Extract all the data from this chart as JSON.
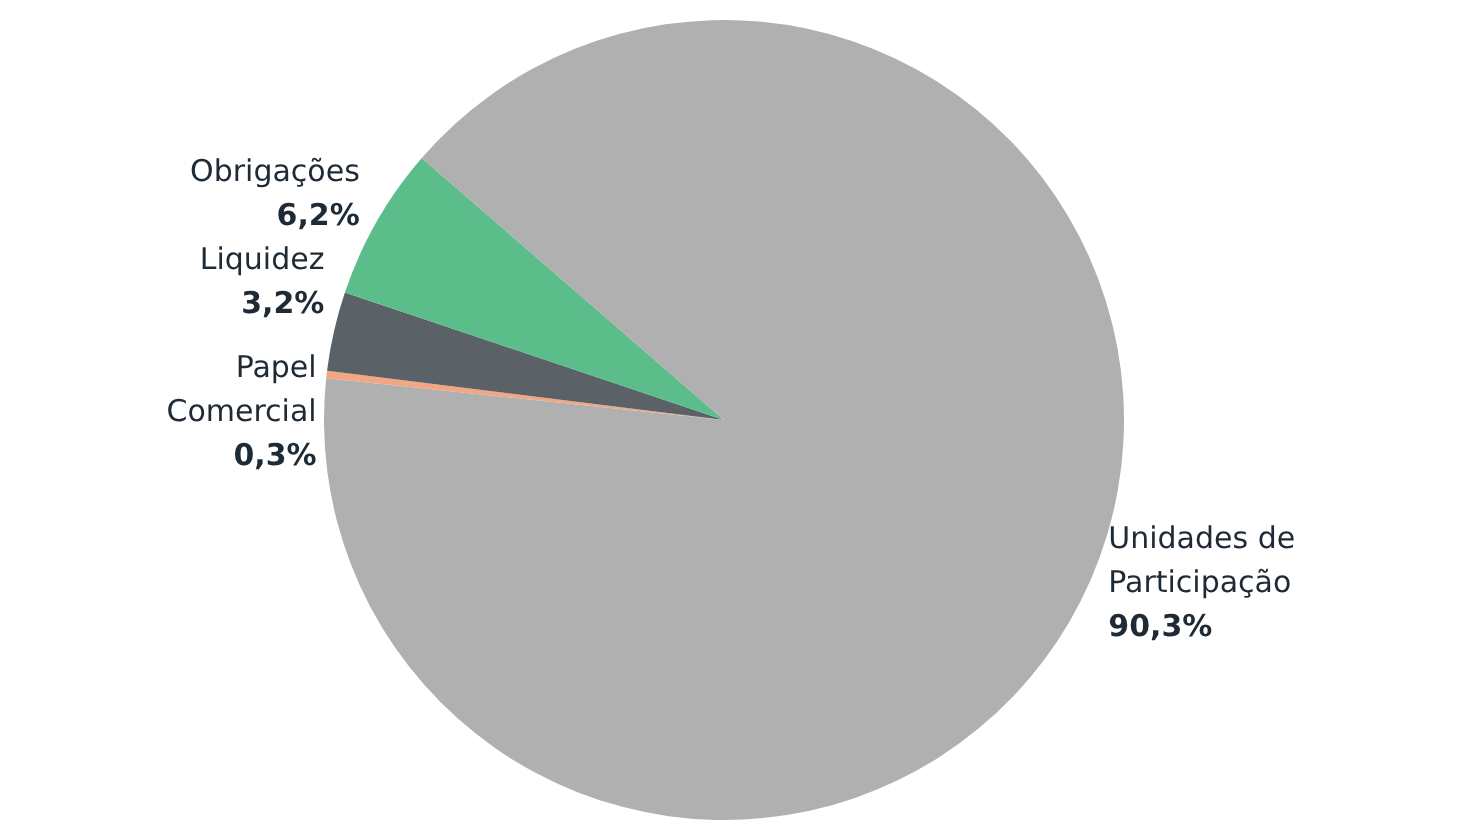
{
  "chart_data": {
    "type": "pie",
    "categories": [
      "Papel\nComercial",
      "Liquidez",
      "Obrigações",
      "Unidades de\nParticipação"
    ],
    "values": [
      0.3,
      3.2,
      6.2,
      90.3
    ],
    "value_labels": [
      "0,3%",
      "3,2%",
      "6,2%",
      "90,3%"
    ],
    "colors": [
      "#f4a582",
      "#5a6268",
      "#5bbd8a",
      "#b0b0b0"
    ]
  }
}
